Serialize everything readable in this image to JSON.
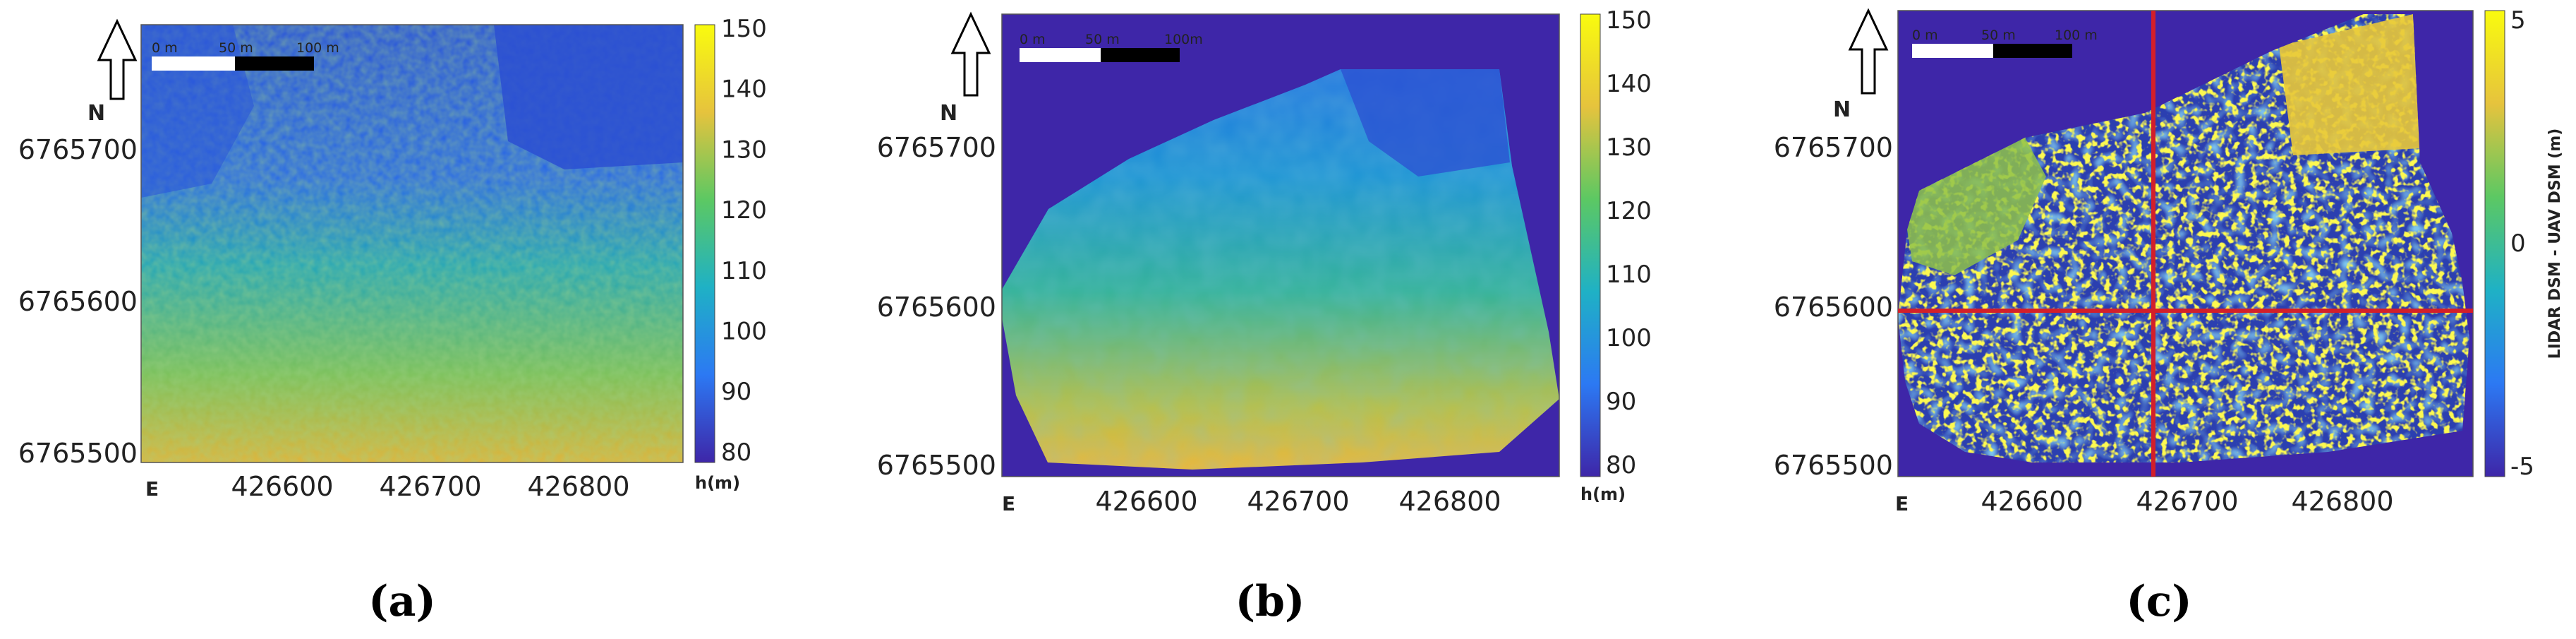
{
  "panels": [
    {
      "id": "a",
      "caption": "(a)",
      "scale_bar": [
        "0 m",
        "50 m",
        "100 m"
      ],
      "north_label": "N",
      "east_label": "E",
      "colorbar": {
        "ticks": [
          "150",
          "140",
          "130",
          "120",
          "110",
          "100",
          "90",
          "80"
        ],
        "label": "h(m)",
        "colors": [
          "#3e26a8",
          "#2c79f3",
          "#1fb1c5",
          "#5cc863",
          "#e6c33d",
          "#f9fb0e"
        ]
      },
      "chart_data": {
        "type": "heatmap",
        "x_ticks": [
          "426600",
          "426700",
          "426800"
        ],
        "y_ticks": [
          "6765700",
          "6765600",
          "6765500"
        ],
        "colorbar_range": [
          80,
          150
        ]
      }
    },
    {
      "id": "b",
      "caption": "(b)",
      "scale_bar": [
        "0 m",
        "50 m",
        "100m"
      ],
      "north_label": "N",
      "east_label": "E",
      "colorbar": {
        "ticks": [
          "150",
          "140",
          "130",
          "120",
          "110",
          "100",
          "90",
          "80"
        ],
        "label": "h(m)",
        "colors": [
          "#3e26a8",
          "#2c79f3",
          "#1fb1c5",
          "#5cc863",
          "#e6c33d",
          "#f9fb0e"
        ]
      },
      "chart_data": {
        "type": "heatmap",
        "x_ticks": [
          "426600",
          "426700",
          "426800"
        ],
        "y_ticks": [
          "6765700",
          "6765600",
          "6765500"
        ],
        "colorbar_range": [
          80,
          150
        ]
      }
    },
    {
      "id": "c",
      "caption": "(c)",
      "scale_bar": [
        "0 m",
        "50 m",
        "100 m"
      ],
      "north_label": "N",
      "east_label": "E",
      "colorbar": {
        "ticks": [
          "5",
          "0",
          "-5"
        ],
        "label": "LIDAR DSM - UAV DSM (m)",
        "colors": [
          "#3e26a8",
          "#2c79f3",
          "#1fb1c5",
          "#5cc863",
          "#e6c33d",
          "#f9fb0e"
        ]
      },
      "chart_data": {
        "type": "heatmap",
        "x_ticks": [
          "426600",
          "426700",
          "426800"
        ],
        "y_ticks": [
          "6765700",
          "6765600",
          "6765500"
        ],
        "colorbar_range": [
          -5,
          5
        ]
      }
    }
  ]
}
